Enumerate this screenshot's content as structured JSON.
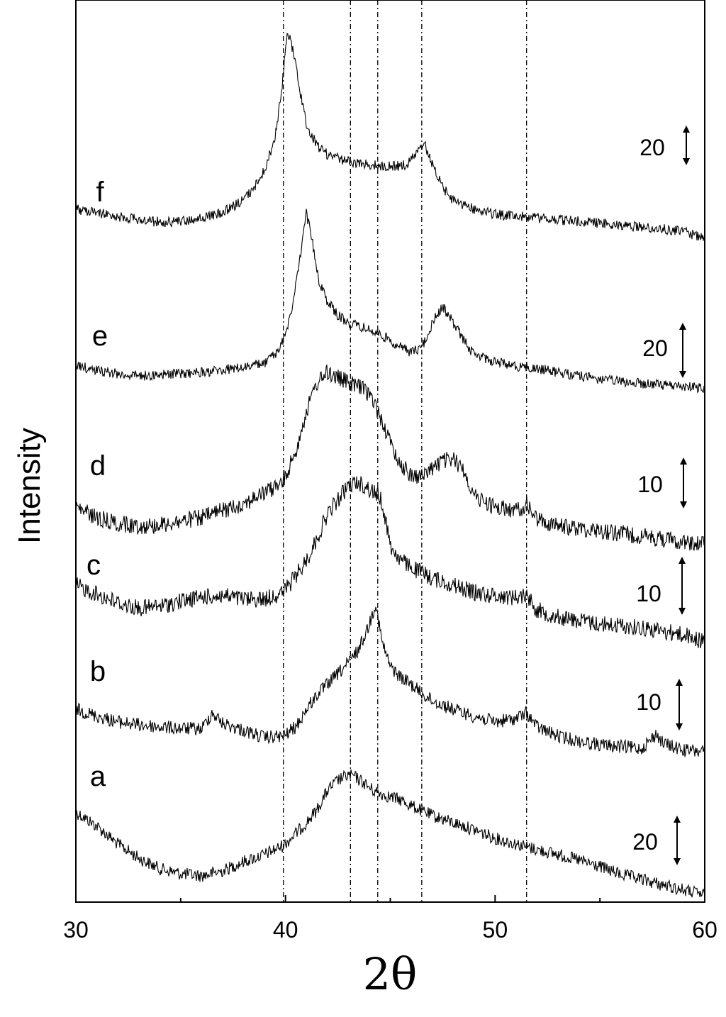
{
  "chart_data": {
    "type": "line",
    "title": "",
    "xlabel": "2θ",
    "ylabel": "Intensity",
    "xlim": [
      30,
      60
    ],
    "x_ticks": [
      30,
      40,
      50,
      60
    ],
    "x_minor_step": 5,
    "y_ticks_shown": false,
    "grid": false,
    "reference_lines_x": [
      39.9,
      43.1,
      44.4,
      46.5,
      51.5
    ],
    "series": [
      {
        "name": "a",
        "scale_label": "20",
        "noise": 3,
        "points": [
          [
            30,
            1145
          ],
          [
            31,
            1165
          ],
          [
            32,
            1190
          ],
          [
            33,
            1210
          ],
          [
            34,
            1225
          ],
          [
            35,
            1232
          ],
          [
            36,
            1235
          ],
          [
            37,
            1228
          ],
          [
            38,
            1215
          ],
          [
            39,
            1205
          ],
          [
            39.9,
            1192
          ],
          [
            40.5,
            1175
          ],
          [
            41,
            1160
          ],
          [
            41.5,
            1142
          ],
          [
            42,
            1115
          ],
          [
            42.5,
            1100
          ],
          [
            43,
            1093
          ],
          [
            43.3,
            1095
          ],
          [
            43.7,
            1103
          ],
          [
            44.2,
            1115
          ],
          [
            44.8,
            1122
          ],
          [
            45.5,
            1128
          ],
          [
            46,
            1136
          ],
          [
            46.5,
            1143
          ],
          [
            47,
            1150
          ],
          [
            48,
            1160
          ],
          [
            49,
            1170
          ],
          [
            50,
            1182
          ],
          [
            51,
            1190
          ],
          [
            52,
            1198
          ],
          [
            53,
            1205
          ],
          [
            54,
            1213
          ],
          [
            55,
            1222
          ],
          [
            56,
            1233
          ],
          [
            57,
            1240
          ],
          [
            58,
            1248
          ],
          [
            59,
            1255
          ],
          [
            60,
            1262
          ]
        ]
      },
      {
        "name": "b",
        "scale_label": "10",
        "noise": 3.2,
        "points": [
          [
            30,
            1000
          ],
          [
            31,
            1010
          ],
          [
            32,
            1018
          ],
          [
            33,
            1022
          ],
          [
            34,
            1025
          ],
          [
            35,
            1027
          ],
          [
            36,
            1028
          ],
          [
            36.5,
            1005
          ],
          [
            37,
            1020
          ],
          [
            38,
            1030
          ],
          [
            39,
            1040
          ],
          [
            39.9,
            1038
          ],
          [
            40.5,
            1025
          ],
          [
            41,
            1000
          ],
          [
            41.5,
            980
          ],
          [
            42,
            965
          ],
          [
            42.5,
            950
          ],
          [
            43,
            935
          ],
          [
            43.5,
            915
          ],
          [
            44,
            880
          ],
          [
            44.3,
            850
          ],
          [
            44.6,
            905
          ],
          [
            45,
            940
          ],
          [
            45.5,
            955
          ],
          [
            46,
            965
          ],
          [
            46.5,
            978
          ],
          [
            47,
            988
          ],
          [
            48,
            1000
          ],
          [
            49,
            1010
          ],
          [
            50,
            1018
          ],
          [
            51,
            1013
          ],
          [
            51.5,
            1005
          ],
          [
            52,
            1025
          ],
          [
            53,
            1038
          ],
          [
            54,
            1045
          ],
          [
            55,
            1050
          ],
          [
            56,
            1053
          ],
          [
            57,
            1055
          ],
          [
            57.7,
            1035
          ],
          [
            58,
            1048
          ],
          [
            59,
            1058
          ],
          [
            60,
            1060
          ]
        ]
      },
      {
        "name": "c",
        "scale_label": "10",
        "noise": 4,
        "points": [
          [
            30,
            825
          ],
          [
            31,
            838
          ],
          [
            32,
            850
          ],
          [
            33,
            858
          ],
          [
            34,
            855
          ],
          [
            35,
            848
          ],
          [
            36,
            842
          ],
          [
            37,
            840
          ],
          [
            38,
            845
          ],
          [
            39,
            845
          ],
          [
            39.9,
            835
          ],
          [
            40.5,
            812
          ],
          [
            41,
            790
          ],
          [
            41.5,
            760
          ],
          [
            42,
            725
          ],
          [
            42.5,
            705
          ],
          [
            43,
            685
          ],
          [
            43.5,
            680
          ],
          [
            44,
            690
          ],
          [
            44.5,
            700
          ],
          [
            44.8,
            735
          ],
          [
            45,
            770
          ],
          [
            45.5,
            790
          ],
          [
            46,
            800
          ],
          [
            47,
            815
          ],
          [
            48,
            825
          ],
          [
            49,
            835
          ],
          [
            50,
            840
          ],
          [
            51,
            842
          ],
          [
            51.5,
            838
          ],
          [
            52,
            860
          ],
          [
            53,
            870
          ],
          [
            54,
            875
          ],
          [
            55,
            880
          ],
          [
            56,
            882
          ],
          [
            57,
            885
          ],
          [
            58,
            890
          ],
          [
            59,
            895
          ],
          [
            60,
            905
          ]
        ]
      },
      {
        "name": "d",
        "scale_label": "10",
        "noise": 4,
        "points": [
          [
            30,
            715
          ],
          [
            31,
            730
          ],
          [
            32,
            738
          ],
          [
            33,
            742
          ],
          [
            34,
            740
          ],
          [
            35,
            735
          ],
          [
            36,
            730
          ],
          [
            37,
            720
          ],
          [
            38,
            710
          ],
          [
            39,
            695
          ],
          [
            39.9,
            680
          ],
          [
            40.5,
            635
          ],
          [
            41,
            580
          ],
          [
            41.5,
            540
          ],
          [
            42,
            525
          ],
          [
            42.5,
            532
          ],
          [
            43,
            540
          ],
          [
            43.5,
            545
          ],
          [
            44,
            555
          ],
          [
            44.5,
            585
          ],
          [
            45,
            625
          ],
          [
            45.5,
            655
          ],
          [
            46,
            670
          ],
          [
            46.5,
            672
          ],
          [
            47,
            660
          ],
          [
            47.5,
            650
          ],
          [
            48,
            648
          ],
          [
            48.5,
            662
          ],
          [
            49,
            700
          ],
          [
            50,
            715
          ],
          [
            51,
            720
          ],
          [
            51.5,
            712
          ],
          [
            52,
            732
          ],
          [
            53,
            742
          ],
          [
            54,
            745
          ],
          [
            55,
            748
          ],
          [
            56,
            752
          ],
          [
            57,
            756
          ],
          [
            58,
            760
          ],
          [
            59,
            764
          ],
          [
            60,
            768
          ]
        ]
      },
      {
        "name": "e",
        "scale_label": "20",
        "noise": 2.4,
        "points": [
          [
            30,
            515
          ],
          [
            31,
            522
          ],
          [
            32,
            527
          ],
          [
            33,
            530
          ],
          [
            34,
            528
          ],
          [
            35,
            527
          ],
          [
            36,
            525
          ],
          [
            37,
            522
          ],
          [
            38,
            518
          ],
          [
            39,
            512
          ],
          [
            39.7,
            495
          ],
          [
            40.2,
            450
          ],
          [
            40.6,
            385
          ],
          [
            41,
            300
          ],
          [
            41.3,
            345
          ],
          [
            41.6,
            395
          ],
          [
            42,
            425
          ],
          [
            42.5,
            445
          ],
          [
            43,
            455
          ],
          [
            43.5,
            460
          ],
          [
            44,
            465
          ],
          [
            44.5,
            472
          ],
          [
            45,
            480
          ],
          [
            45.5,
            490
          ],
          [
            46,
            497
          ],
          [
            46.5,
            490
          ],
          [
            46.8,
            470
          ],
          [
            47.2,
            445
          ],
          [
            47.5,
            432
          ],
          [
            48,
            455
          ],
          [
            48.5,
            480
          ],
          [
            49,
            500
          ],
          [
            50,
            510
          ],
          [
            51,
            516
          ],
          [
            52,
            520
          ],
          [
            53,
            525
          ],
          [
            54,
            530
          ],
          [
            55,
            535
          ],
          [
            56,
            538
          ],
          [
            57,
            541
          ],
          [
            58,
            543
          ],
          [
            59,
            545
          ],
          [
            60,
            547
          ]
        ]
      },
      {
        "name": "f",
        "scale_label": "20",
        "noise": 2.4,
        "points": [
          [
            30,
            295
          ],
          [
            31,
            300
          ],
          [
            32,
            305
          ],
          [
            33,
            310
          ],
          [
            34,
            313
          ],
          [
            35,
            312
          ],
          [
            36,
            308
          ],
          [
            37,
            300
          ],
          [
            38,
            282
          ],
          [
            38.5,
            265
          ],
          [
            39,
            240
          ],
          [
            39.5,
            195
          ],
          [
            39.8,
            130
          ],
          [
            40.1,
            45
          ],
          [
            40.4,
            75
          ],
          [
            40.7,
            130
          ],
          [
            41,
            175
          ],
          [
            41.5,
            205
          ],
          [
            42,
            218
          ],
          [
            43,
            228
          ],
          [
            44,
            232
          ],
          [
            45,
            235
          ],
          [
            45.8,
            232
          ],
          [
            46.3,
            215
          ],
          [
            46.6,
            200
          ],
          [
            47,
            232
          ],
          [
            47.5,
            265
          ],
          [
            48,
            282
          ],
          [
            49,
            295
          ],
          [
            50,
            302
          ],
          [
            51,
            305
          ],
          [
            52,
            307
          ],
          [
            53,
            310
          ],
          [
            54,
            312
          ],
          [
            55,
            315
          ],
          [
            56,
            318
          ],
          [
            57,
            320
          ],
          [
            58,
            323
          ],
          [
            59,
            327
          ],
          [
            60,
            335
          ]
        ]
      }
    ],
    "series_labels": [
      "a",
      "b",
      "c",
      "d",
      "e",
      "f"
    ],
    "scale_bar_labels": [
      "20",
      "10",
      "10",
      "10",
      "20",
      "20"
    ]
  }
}
